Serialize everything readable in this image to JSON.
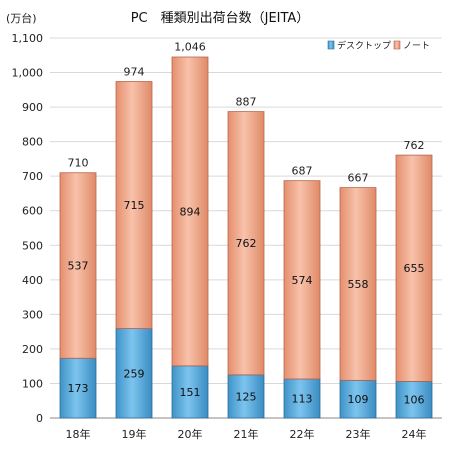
{
  "chart_data": {
    "type": "bar",
    "stacked": true,
    "title": "PC　種類別出荷台数（JEITA）",
    "ylabel": "(万台)",
    "xlabel": "",
    "ylim": [
      0,
      1100
    ],
    "yticks": [
      0,
      100,
      200,
      300,
      400,
      500,
      600,
      700,
      800,
      900,
      1000,
      1100
    ],
    "ytick_labels": [
      "0",
      "100",
      "200",
      "300",
      "400",
      "500",
      "600",
      "700",
      "800",
      "900",
      "1,000",
      "1,100"
    ],
    "grid": true,
    "legend": "top-right",
    "categories": [
      "18年",
      "19年",
      "20年",
      "21年",
      "22年",
      "23年",
      "24年"
    ],
    "series": [
      {
        "name": "デスクトップ",
        "color": "#5fb2e2",
        "values": [
          173,
          259,
          151,
          125,
          113,
          109,
          106
        ],
        "labels": [
          "173",
          "259",
          "151",
          "125",
          "113",
          "109",
          "106"
        ]
      },
      {
        "name": "ノート",
        "color": "#f4ae92",
        "values": [
          537,
          715,
          894,
          762,
          574,
          558,
          655
        ],
        "labels": [
          "537",
          "715",
          "894",
          "762",
          "574",
          "558",
          "655"
        ]
      }
    ],
    "totals": [
      710,
      974,
      1046,
      887,
      687,
      667,
      762
    ],
    "total_labels": [
      "710",
      "974",
      "1,046",
      "887",
      "687",
      "667",
      "762"
    ]
  }
}
